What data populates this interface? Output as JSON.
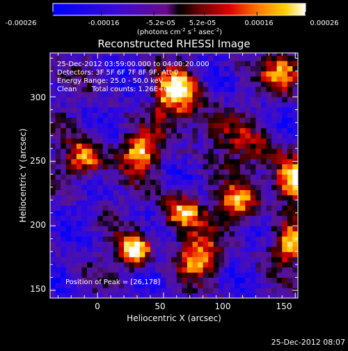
{
  "colorbar": {
    "ticks": [
      "-0.00026",
      "-0.00016",
      "-5.2e-05",
      "5.2e-05",
      "0.00016",
      "0.00026"
    ],
    "unit_main": "(photons cm",
    "unit_exp1": "-2",
    "unit_s": " s",
    "unit_exp2": "-1",
    "unit_asec": " asec",
    "unit_exp3": "-2",
    "unit_close": ")",
    "range": [
      -0.00026,
      0.00026
    ]
  },
  "info": {
    "line1": "25-Dec-2012 03:59:00.000 to 04:00:20.000",
    "line2": "Detectors: 3F 5F 6F 7F 8F 9F, Att 0",
    "line3": "Energy Range: 25.0 - 50.0 keV",
    "line4_a": "Clean",
    "line4_b": "Total counts: 1.26E+03",
    "peak": "Position of Peak = [26,178]"
  },
  "timestamp": "25-Dec-2012 08:07",
  "colors": {
    "background": "#000000",
    "axes": "#ffffff"
  },
  "chart_data": {
    "type": "heatmap",
    "title": "Reconstructed RHESSI Image",
    "xlabel": "Heliocentric X (arcsec)",
    "ylabel": "Heliocentric Y (arcsec)",
    "xlim": [
      -36,
      152
    ],
    "ylim": [
      144,
      334
    ],
    "x_ticks": [
      "0",
      "50",
      "100",
      "150"
    ],
    "y_ticks": [
      "150",
      "200",
      "250",
      "300"
    ],
    "colormap": "blue-purple-red-yellow-white",
    "peak_position": [
      26,
      178
    ],
    "hot_spots": [
      {
        "x": 26,
        "y": 178
      },
      {
        "x": 75,
        "y": 175
      },
      {
        "x": 62,
        "y": 208
      },
      {
        "x": 105,
        "y": 215
      },
      {
        "x": 148,
        "y": 232
      },
      {
        "x": -12,
        "y": 250
      },
      {
        "x": 30,
        "y": 255
      },
      {
        "x": 60,
        "y": 305
      },
      {
        "x": 140,
        "y": 318
      },
      {
        "x": 145,
        "y": 185
      }
    ]
  }
}
